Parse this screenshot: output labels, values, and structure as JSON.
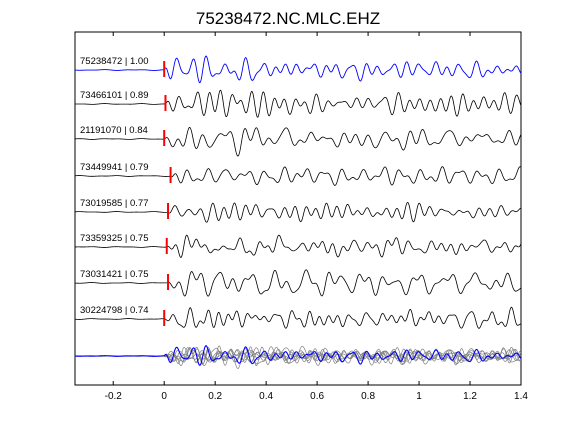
{
  "chart_data": {
    "type": "line",
    "title": "75238472.NC.MLC.EHZ",
    "xlabel": "",
    "ylabel": "",
    "xlim": [
      -0.35,
      1.4
    ],
    "x_ticks": [
      -0.2,
      0,
      0.2,
      0.4,
      0.6,
      0.8,
      1,
      1.2,
      1.4
    ],
    "x_tick_labels": [
      "-0.2",
      "0",
      "0.2",
      "0.4",
      "0.6",
      "0.8",
      "1",
      "1.2",
      "1.4"
    ],
    "grid": false,
    "legend": "none",
    "colors": {
      "master": "#0000ff",
      "trace": "#000000",
      "stack": "#808080",
      "pick": "#ff0000"
    },
    "series": [
      {
        "name": "75238472 | 1.00",
        "correlation": 1.0,
        "pick_time": 0.0,
        "is_master": true
      },
      {
        "name": "73466101 | 0.89",
        "correlation": 0.89,
        "pick_time": 0.005,
        "is_master": false
      },
      {
        "name": "21191070 | 0.84",
        "correlation": 0.84,
        "pick_time": 0.0,
        "is_master": false
      },
      {
        "name": "73449941 | 0.79",
        "correlation": 0.79,
        "pick_time": 0.025,
        "is_master": false
      },
      {
        "name": "73019585 | 0.77",
        "correlation": 0.77,
        "pick_time": 0.015,
        "is_master": false
      },
      {
        "name": "73359325 | 0.75",
        "correlation": 0.75,
        "pick_time": 0.01,
        "is_master": false
      },
      {
        "name": "73031421 | 0.75",
        "correlation": 0.75,
        "pick_time": 0.015,
        "is_master": false
      },
      {
        "name": "30224798 | 0.74",
        "correlation": 0.74,
        "pick_time": 0.0,
        "is_master": false
      }
    ],
    "stack_panel": {
      "overlaid_traces": 8
    }
  }
}
